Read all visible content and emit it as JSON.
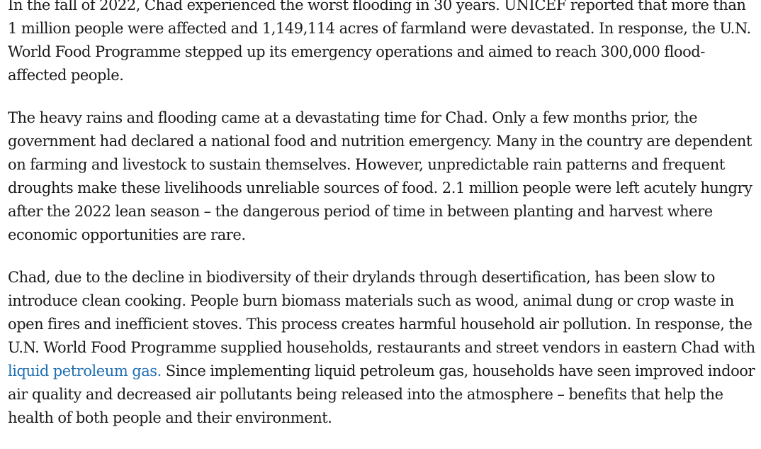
{
  "article": {
    "paragraph_1": "In the fall of 2022, Chad experienced the worst flooding in 30 years. UNICEF reported that more than 1 million people were affected and 1,149,114 acres of farmland were devastated. In response, the U.N. World Food Programme stepped up its emergency operations and aimed to reach 300,000 flood-affected people.",
    "paragraph_2": "The heavy rains and flooding came at a devastating time for Chad. Only a few months prior, the government had declared a national food and nutrition emergency. Many in the country are dependent on farming and livestock to sustain themselves. However, unpredictable rain patterns and frequent droughts make these livelihoods unreliable sources of food. 2.1 million people were left acutely hungry after the 2022 lean season – the dangerous period of time in between planting and harvest where economic opportunities are rare.",
    "paragraph_3": {
      "before_link": "Chad, due to the decline in biodiversity of their drylands through desertification, has been slow to introduce clean cooking. People burn biomass materials such as wood, animal dung or crop waste in open fires and inefficient stoves. This process creates harmful household air pollution. In response, the U.N. World Food Programme supplied households, restaurants and street vendors in eastern Chad with ",
      "link_text": "liquid petroleum gas.",
      "after_link": " Since implementing liquid petroleum gas, households have seen improved indoor air quality and decreased air pollutants being released into the atmosphere – benefits that help the health of both people and their environment."
    }
  },
  "colors": {
    "text": "#1a1a1a",
    "link": "#1f6fb2",
    "background": "#ffffff"
  }
}
